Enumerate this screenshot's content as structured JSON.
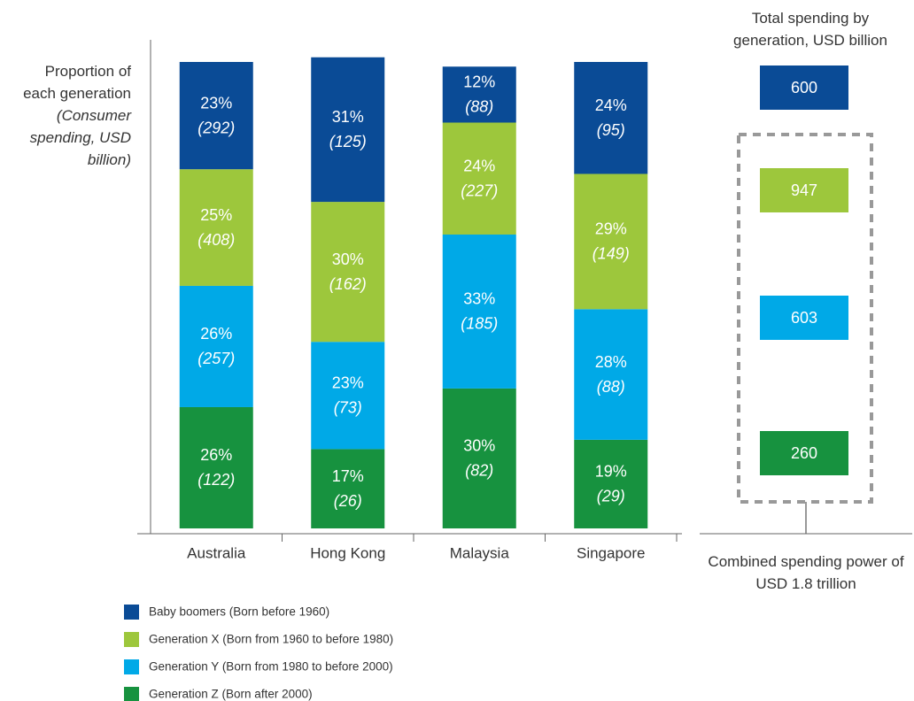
{
  "chart_data": {
    "type": "stacked_bar",
    "ylabel": "Proportion of each generation",
    "ylabel_note": "(Consumer spending, USD billion)",
    "categories": [
      "Australia",
      "Hong Kong",
      "Malaysia",
      "Singapore"
    ],
    "ylim": [
      0,
      100
    ],
    "series": [
      {
        "name": "Baby boomers (Born before 1960)",
        "color": "#0a4b96",
        "values": [
          23,
          31,
          12,
          24
        ],
        "value_labels": [
          "23%",
          "31%",
          "12%",
          "24%"
        ],
        "spending": [
          292,
          125,
          88,
          95
        ],
        "spending_labels": [
          "(292)",
          "(125)",
          "(88)",
          "(95)"
        ],
        "total": 600
      },
      {
        "name": "Generation X (Born from 1960 to before 1980)",
        "color": "#9dc73c",
        "values": [
          25,
          30,
          24,
          29
        ],
        "value_labels": [
          "25%",
          "30%",
          "24%",
          "29%"
        ],
        "spending": [
          408,
          162,
          227,
          149
        ],
        "spending_labels": [
          "(408)",
          "(162)",
          "(227)",
          "(149)"
        ],
        "total": 947
      },
      {
        "name": "Generation Y (Born from 1980 to before 2000)",
        "color": "#00a9e7",
        "values": [
          26,
          23,
          33,
          28
        ],
        "value_labels": [
          "26%",
          "23%",
          "33%",
          "28%"
        ],
        "spending": [
          257,
          73,
          185,
          88
        ],
        "spending_labels": [
          "(257)",
          "(73)",
          "(185)",
          "(88)"
        ],
        "total": 603
      },
      {
        "name": "Generation Z (Born after 2000)",
        "color": "#17923f",
        "values": [
          26,
          17,
          30,
          19
        ],
        "value_labels": [
          "26%",
          "17%",
          "30%",
          "19%"
        ],
        "spending": [
          122,
          26,
          82,
          29
        ],
        "spending_labels": [
          "(122)",
          "(26)",
          "(82)",
          "(29)"
        ],
        "total": 260
      }
    ],
    "totals_title": "Total spending by generation, USD billion",
    "annotation": "Combined spending power of USD 1.8 trillion"
  }
}
